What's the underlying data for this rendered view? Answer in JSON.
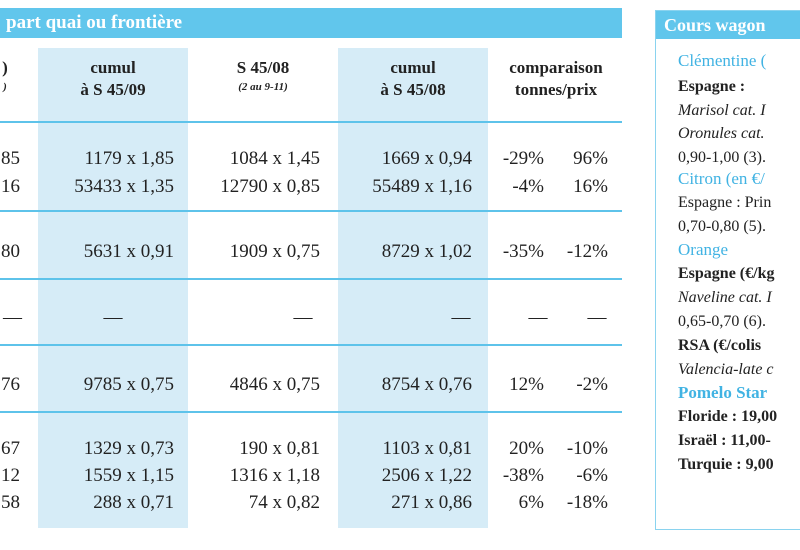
{
  "header": {
    "title": "part quai ou frontière"
  },
  "columns": [
    {
      "line1": ")",
      "line2": ")"
    },
    {
      "line1": "cumul",
      "line2": "à S 45/09"
    },
    {
      "line1": "S 45/08",
      "sub": "(2 au 9-11)"
    },
    {
      "line1": "cumul",
      "line2": "à S 45/08"
    },
    {
      "line1": "comparaison",
      "line2": "tonnes/prix"
    }
  ],
  "rows": [
    [
      "85",
      "1179 x 1,85",
      "1084 x 1,45",
      "1669 x 0,94",
      "-29%",
      "96%"
    ],
    [
      "16",
      "53433 x 1,35",
      "12790 x 0,85",
      "55489 x 1,16",
      "-4%",
      "16%"
    ],
    [
      "80",
      "5631 x 0,91",
      "1909 x 0,75",
      "8729 x 1,02",
      "-35%",
      "-12%"
    ],
    [
      "—",
      "—",
      "—",
      "—",
      "—",
      "—"
    ],
    [
      "76",
      "9785 x 0,75",
      "4846 x 0,75",
      "8754 x 0,76",
      "12%",
      "-2%"
    ],
    [
      "67",
      "1329 x 0,73",
      "190 x 0,81",
      "1103 x 0,81",
      "20%",
      "-10%"
    ],
    [
      "12",
      "1559 x 1,15",
      "1316 x 1,18",
      "2506 x 1,22",
      "-38%",
      "-6%"
    ],
    [
      "58",
      "288 x 0,71",
      "74 x 0,82",
      "271 x 0,86",
      "6%",
      "-18%"
    ]
  ],
  "side_panel": {
    "title": "Cours wagon",
    "lines": [
      "Clémentine (",
      "Espagne :",
      "Marisol cat. I",
      "Oronules cat.",
      "0,90-1,00 (3).",
      "Citron (en €/",
      "Espagne : Prin",
      "0,70-0,80 (5).",
      "Orange",
      "Espagne (€/kg",
      "Naveline cat. I",
      "0,65-0,70 (6).",
      "RSA (€/colis",
      "Valencia-late c",
      "Pomelo Star",
      "Floride : 19,00",
      "Israël : 11,00-",
      "Turquie : 9,00"
    ]
  },
  "colors": {
    "accent": "#61c6ec",
    "shade": "#d6ecf7",
    "fruit_title": "#41b3e3"
  }
}
